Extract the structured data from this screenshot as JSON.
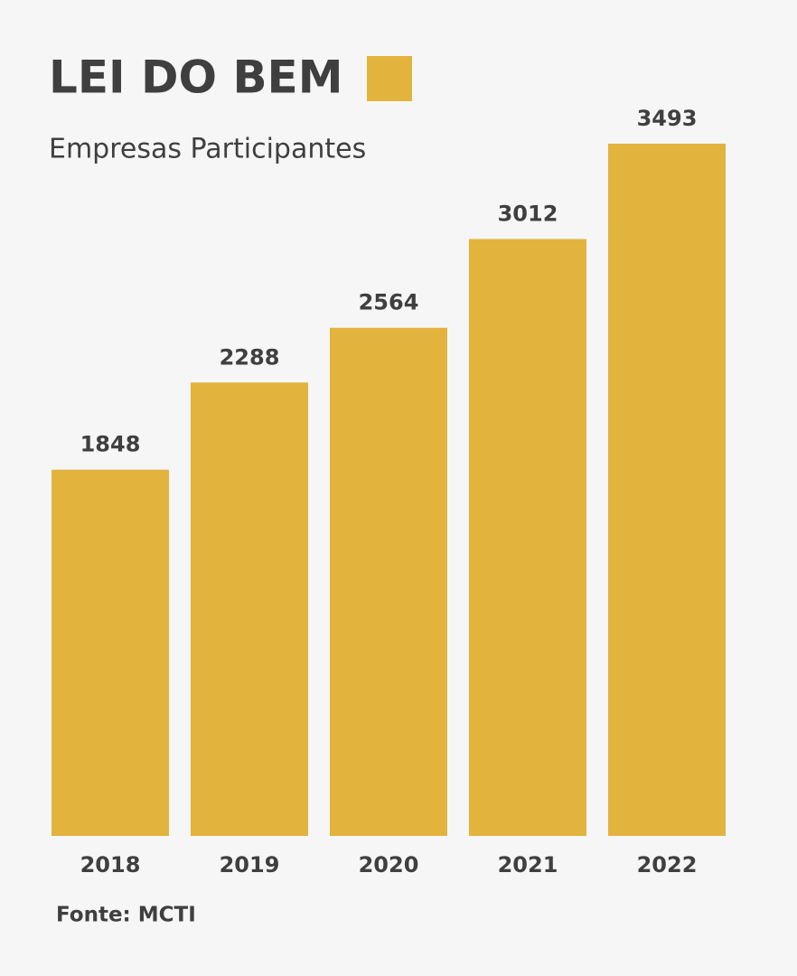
{
  "chart_data": {
    "type": "bar",
    "title": "LEI DO BEM",
    "subtitle": "Empresas Participantes",
    "source": "Fonte: MCTI",
    "categories": [
      "2018",
      "2019",
      "2020",
      "2021",
      "2022"
    ],
    "values": [
      1848,
      2288,
      2564,
      3012,
      3493
    ],
    "color": "#e2b43e"
  }
}
